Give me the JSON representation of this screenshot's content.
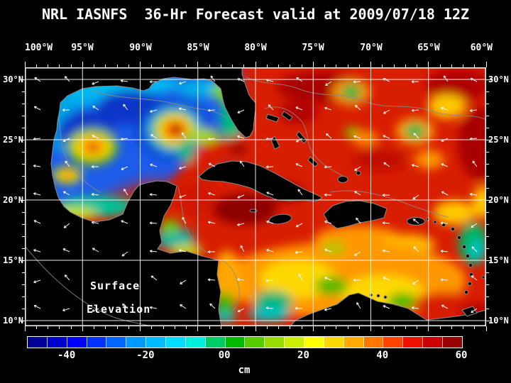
{
  "title": "NRL IASNFS  36-Hr Forecast valid at 2009/07/18 12Z",
  "axes": {
    "lon_labels": [
      "100°W",
      "95°W",
      "90°W",
      "85°W",
      "80°W",
      "75°W",
      "70°W",
      "65°W",
      "60°W"
    ],
    "lat_labels": [
      "30°N",
      "25°N",
      "20°N",
      "15°N",
      "10°N"
    ]
  },
  "map": {
    "annotation_line1": "Surface",
    "annotation_line2": "Elevation"
  },
  "colorbar": {
    "unit": "cm",
    "tick_labels": [
      "-40",
      "-20",
      "00",
      "20",
      "40",
      "60"
    ],
    "tick_values": [
      -40,
      -20,
      0,
      20,
      40,
      60
    ],
    "range_min": -50,
    "range_max": 60,
    "colors": [
      "#000099",
      "#0000CC",
      "#0000FF",
      "#0033FF",
      "#0066FF",
      "#0099FF",
      "#00BBFF",
      "#00DDFF",
      "#00EEDD",
      "#00CC66",
      "#00BB00",
      "#55CC00",
      "#99DD00",
      "#CCEE00",
      "#FFFF00",
      "#FFD700",
      "#FFAA00",
      "#FF7700",
      "#FF4400",
      "#EE1100",
      "#CC0000",
      "#990000"
    ]
  }
}
